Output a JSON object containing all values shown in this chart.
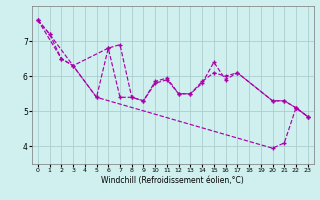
{
  "background_color": "#cff0ee",
  "grid_color": "#aacfcf",
  "line_color": "#aa00aa",
  "xlabel": "Windchill (Refroidissement éolien,°C)",
  "yticks": [
    4,
    5,
    6,
    7
  ],
  "xticks": [
    0,
    1,
    2,
    3,
    4,
    5,
    6,
    7,
    8,
    9,
    10,
    11,
    12,
    13,
    14,
    15,
    16,
    17,
    18,
    19,
    20,
    21,
    22,
    23
  ],
  "xlim": [
    -0.5,
    23.5
  ],
  "ylim": [
    3.5,
    8.0
  ],
  "line1_x": [
    0,
    1,
    2,
    3,
    5,
    6,
    7,
    8,
    9,
    10,
    11,
    12,
    13,
    14,
    15,
    16,
    17,
    20,
    21,
    22,
    23
  ],
  "line1_y": [
    7.6,
    7.2,
    6.5,
    6.3,
    5.4,
    6.8,
    6.9,
    5.4,
    5.3,
    5.8,
    5.9,
    5.5,
    5.5,
    5.8,
    6.4,
    5.9,
    6.1,
    5.3,
    5.3,
    5.1,
    4.85
  ],
  "line2_x": [
    0,
    2,
    3,
    6,
    7,
    8,
    9,
    10,
    11,
    12,
    13,
    14,
    15,
    16,
    17,
    20,
    21,
    22,
    23
  ],
  "line2_y": [
    7.6,
    6.5,
    6.3,
    6.8,
    5.4,
    5.4,
    5.3,
    5.85,
    5.95,
    5.5,
    5.5,
    5.85,
    6.1,
    6.0,
    6.1,
    5.3,
    5.3,
    5.1,
    4.85
  ],
  "line3_x": [
    0,
    1,
    5,
    20,
    21,
    22,
    23
  ],
  "line3_y": [
    7.6,
    7.2,
    5.4,
    3.95,
    4.1,
    5.1,
    4.85
  ]
}
